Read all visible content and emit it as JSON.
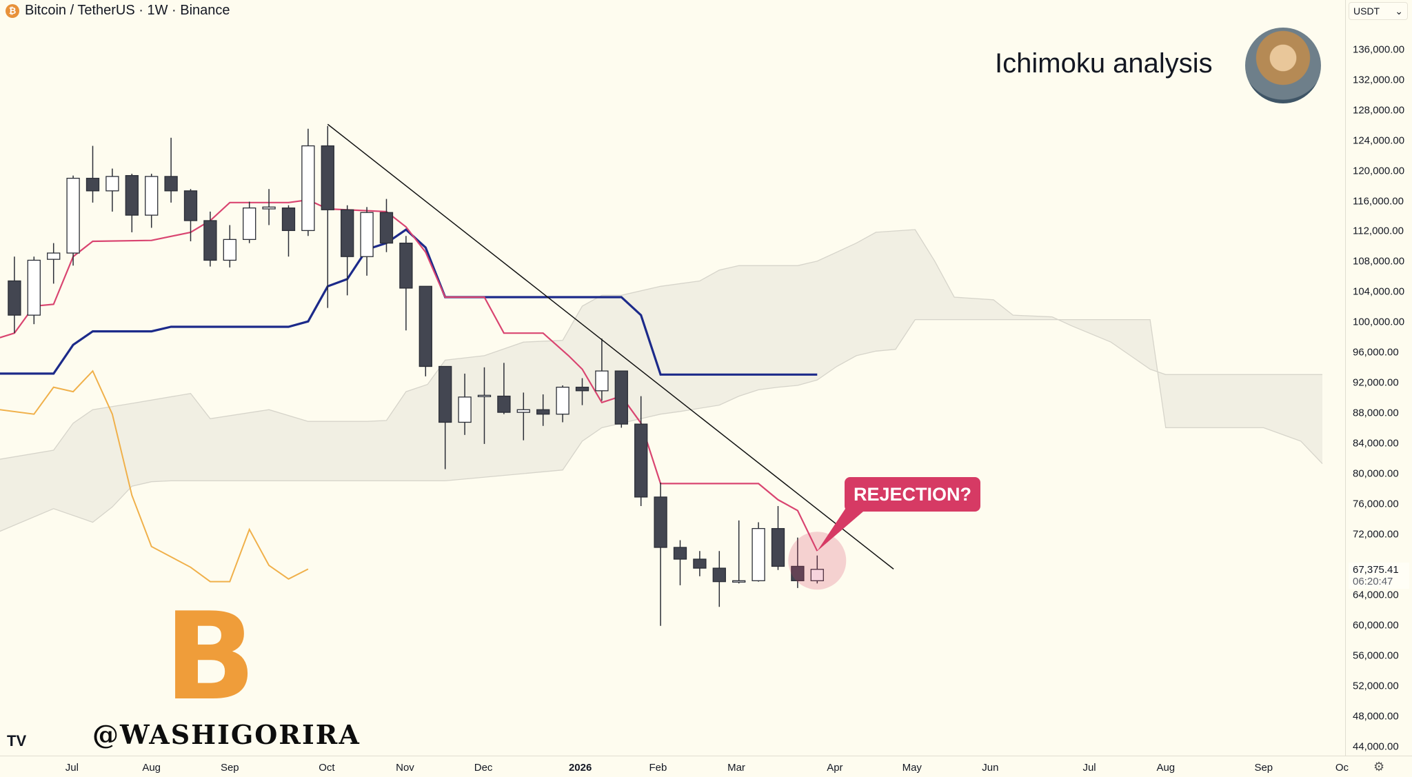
{
  "header": {
    "symbol_title": "Bitcoin / TetherUS · 1W · Binance",
    "coin_icon": "bitcoin-icon"
  },
  "currency_select": {
    "value": "USDT"
  },
  "current_price": {
    "value": "67,375.41",
    "countdown": "06:20:47"
  },
  "annotation": {
    "title": "Ichimoku analysis",
    "callout": "REJECTION?",
    "handle": "@WASHIGORIRA",
    "logo_symbol": "B"
  },
  "colors": {
    "tenkan": "#d94470",
    "kijun": "#1c2a8a",
    "chikou": "#f0b04a",
    "cloud": "#f1efe3",
    "cloud_edge": "#d6d4ca",
    "bear": "#434651",
    "bull": "#ffffff",
    "callout": "#d63a64"
  },
  "chart_data": {
    "type": "candlestick",
    "title": "Bitcoin / TetherUS · 1W · Binance",
    "ylim": [
      44000,
      136000
    ],
    "y_ticks": [
      "136,000.00",
      "132,000.00",
      "128,000.00",
      "124,000.00",
      "120,000.00",
      "116,000.00",
      "112,000.00",
      "108,000.00",
      "104,000.00",
      "100,000.00",
      "96,000.00",
      "92,000.00",
      "88,000.00",
      "84,000.00",
      "80,000.00",
      "76,000.00",
      "72,000.00",
      "64,000.00",
      "60,000.00",
      "56,000.00",
      "52,000.00",
      "48,000.00",
      "44,000.00"
    ],
    "x_ticks": [
      {
        "label": "Jul",
        "idx": 2.94
      },
      {
        "label": "Aug",
        "idx": 7
      },
      {
        "label": "Sep",
        "idx": 11
      },
      {
        "label": "Oct",
        "idx": 15.95
      },
      {
        "label": "Nov",
        "idx": 19.95
      },
      {
        "label": "Dec",
        "idx": 23.95
      },
      {
        "label": "2026",
        "idx": 28.9,
        "year": true
      },
      {
        "label": "Feb",
        "idx": 32.87
      },
      {
        "label": "Mar",
        "idx": 36.87
      },
      {
        "label": "Apr",
        "idx": 41.9
      },
      {
        "label": "May",
        "idx": 45.84
      },
      {
        "label": "Jun",
        "idx": 49.84
      },
      {
        "label": "Jul",
        "idx": 54.9
      },
      {
        "label": "Aug",
        "idx": 58.8
      },
      {
        "label": "Sep",
        "idx": 63.8
      },
      {
        "label": "Oc",
        "idx": 67.8
      }
    ],
    "candles_ohlc": [
      [
        105450,
        108660,
        98560,
        100930
      ],
      [
        100930,
        108660,
        99740,
        108180
      ],
      [
        108300,
        110440,
        105090,
        109130
      ],
      [
        109130,
        119360,
        107470,
        119000
      ],
      [
        119000,
        123280,
        115790,
        117340
      ],
      [
        117340,
        120280,
        114600,
        119240
      ],
      [
        119360,
        119600,
        111870,
        114130
      ],
      [
        114130,
        119600,
        112460,
        119240
      ],
      [
        119240,
        124350,
        115790,
        117340
      ],
      [
        117340,
        117580,
        110680,
        113410
      ],
      [
        113410,
        114600,
        107350,
        108180
      ],
      [
        108180,
        112820,
        107230,
        110920
      ],
      [
        110920,
        115910,
        110440,
        115080
      ],
      [
        114960,
        117580,
        112820,
        115200
      ],
      [
        115080,
        115440,
        108660,
        112100
      ],
      [
        112100,
        125540,
        111390,
        123280
      ],
      [
        123280,
        125900,
        101880,
        114840
      ],
      [
        114840,
        115440,
        103550,
        108660
      ],
      [
        108660,
        115200,
        106140,
        114480
      ],
      [
        114480,
        116270,
        109250,
        110440
      ],
      [
        110440,
        111390,
        98910,
        104500
      ],
      [
        104740,
        104740,
        92850,
        94160
      ],
      [
        94160,
        94160,
        80600,
        86790
      ],
      [
        86790,
        93210,
        85120,
        90120
      ],
      [
        90240,
        94040,
        83930,
        90350
      ],
      [
        90240,
        94630,
        87860,
        88100
      ],
      [
        88100,
        90710,
        84410,
        88450
      ],
      [
        88450,
        90470,
        86310,
        87860
      ],
      [
        87860,
        91660,
        86790,
        91420
      ],
      [
        91420,
        92610,
        89050,
        90950
      ],
      [
        90950,
        97840,
        89640,
        93560
      ],
      [
        93560,
        93560,
        86070,
        86550
      ],
      [
        86550,
        90240,
        75730,
        76920
      ],
      [
        76920,
        78820,
        59920,
        70270
      ],
      [
        70270,
        71220,
        65270,
        68720
      ],
      [
        68720,
        69790,
        66460,
        67530
      ],
      [
        67530,
        69790,
        62420,
        65750
      ],
      [
        65750,
        73830,
        65510,
        65870
      ],
      [
        65870,
        73590,
        65750,
        72760
      ],
      [
        72760,
        75730,
        67290,
        67770
      ],
      [
        67770,
        71570,
        64910,
        65870
      ],
      [
        65870,
        69200,
        65510,
        67375.41
      ]
    ],
    "tenkan_sen": [
      [
        -0.74,
        97960
      ],
      [
        0,
        98560
      ],
      [
        1,
        102120
      ],
      [
        2,
        102360
      ],
      [
        3,
        108660
      ],
      [
        4,
        110680
      ],
      [
        7,
        110800
      ],
      [
        9,
        111870
      ],
      [
        10,
        113410
      ],
      [
        11,
        115790
      ],
      [
        14,
        115790
      ],
      [
        15,
        116150
      ],
      [
        16,
        114960
      ],
      [
        19,
        114600
      ],
      [
        20,
        112580
      ],
      [
        21,
        109250
      ],
      [
        22,
        103310
      ],
      [
        24,
        103310
      ],
      [
        25,
        98560
      ],
      [
        27,
        98560
      ],
      [
        28.3,
        95580
      ],
      [
        29,
        93800
      ],
      [
        30,
        89400
      ],
      [
        31,
        90240
      ],
      [
        32,
        86670
      ],
      [
        33,
        78700
      ],
      [
        38,
        78700
      ],
      [
        39,
        76560
      ],
      [
        40,
        75140
      ],
      [
        41,
        69790
      ]
    ],
    "kijun_sen": [
      [
        -0.74,
        93210
      ],
      [
        2,
        93210
      ],
      [
        3,
        97010
      ],
      [
        4,
        98790
      ],
      [
        7,
        98790
      ],
      [
        8,
        99390
      ],
      [
        14,
        99390
      ],
      [
        15,
        100100
      ],
      [
        16,
        104740
      ],
      [
        17,
        105690
      ],
      [
        18,
        109610
      ],
      [
        19,
        110440
      ],
      [
        20,
        112230
      ],
      [
        21,
        109850
      ],
      [
        22,
        103310
      ],
      [
        31,
        103310
      ],
      [
        32,
        100930
      ],
      [
        33,
        93090
      ],
      [
        41,
        93090
      ]
    ],
    "chikou_span": [
      [
        -0.74,
        88450
      ],
      [
        1,
        87860
      ],
      [
        2,
        91420
      ],
      [
        3,
        90830
      ],
      [
        4,
        93560
      ],
      [
        5,
        87860
      ],
      [
        6,
        77160
      ],
      [
        7,
        70390
      ],
      [
        9,
        67650
      ],
      [
        10,
        65750
      ],
      [
        11,
        65750
      ],
      [
        12,
        72640
      ],
      [
        13,
        67890
      ],
      [
        14,
        66100
      ],
      [
        15,
        67410
      ]
    ],
    "cloud_upper": [
      [
        -0.74,
        81910
      ],
      [
        2,
        83100
      ],
      [
        3,
        86670
      ],
      [
        4,
        88450
      ],
      [
        6,
        89280
      ],
      [
        9,
        90590
      ],
      [
        10,
        87260
      ],
      [
        13,
        88450
      ],
      [
        15,
        86910
      ],
      [
        18,
        86910
      ],
      [
        19,
        87020
      ],
      [
        20,
        90830
      ],
      [
        21.1,
        91780
      ],
      [
        22,
        94990
      ],
      [
        24,
        95580
      ],
      [
        26,
        97370
      ],
      [
        28,
        97600
      ],
      [
        29,
        102120
      ],
      [
        30,
        103550
      ],
      [
        31,
        103550
      ],
      [
        33,
        104740
      ],
      [
        35,
        105450
      ],
      [
        36,
        106880
      ],
      [
        37,
        107470
      ],
      [
        40,
        107470
      ],
      [
        41,
        108070
      ],
      [
        42,
        109250
      ],
      [
        43,
        110440
      ],
      [
        44,
        111870
      ],
      [
        46,
        112230
      ],
      [
        47,
        108070
      ],
      [
        48,
        103310
      ],
      [
        50,
        102960
      ],
      [
        51,
        100930
      ],
      [
        53,
        100700
      ],
      [
        54,
        99510
      ],
      [
        56,
        97370
      ],
      [
        57,
        95580
      ],
      [
        58,
        93800
      ],
      [
        58.8,
        93090
      ],
      [
        66.8,
        93090
      ]
    ],
    "cloud_lower": [
      [
        -0.74,
        72400
      ],
      [
        2,
        75380
      ],
      [
        4,
        73590
      ],
      [
        5,
        75610
      ],
      [
        6,
        78350
      ],
      [
        7,
        78940
      ],
      [
        8,
        79060
      ],
      [
        22,
        79060
      ],
      [
        28,
        80490
      ],
      [
        29,
        84290
      ],
      [
        30,
        86070
      ],
      [
        31,
        86670
      ],
      [
        32,
        87260
      ],
      [
        33,
        87860
      ],
      [
        34,
        88220
      ],
      [
        36,
        89050
      ],
      [
        37,
        90240
      ],
      [
        38,
        91070
      ],
      [
        39,
        91420
      ],
      [
        40,
        91660
      ],
      [
        41,
        92380
      ],
      [
        42,
        94160
      ],
      [
        43,
        95580
      ],
      [
        44,
        96180
      ],
      [
        45,
        96420
      ],
      [
        46,
        100340
      ],
      [
        58,
        100340
      ],
      [
        58.8,
        86070
      ],
      [
        63.8,
        86070
      ],
      [
        65.7,
        84290
      ],
      [
        66.8,
        81320
      ]
    ],
    "trendline": [
      [
        16,
        126130
      ],
      [
        44.9,
        67410
      ]
    ]
  }
}
